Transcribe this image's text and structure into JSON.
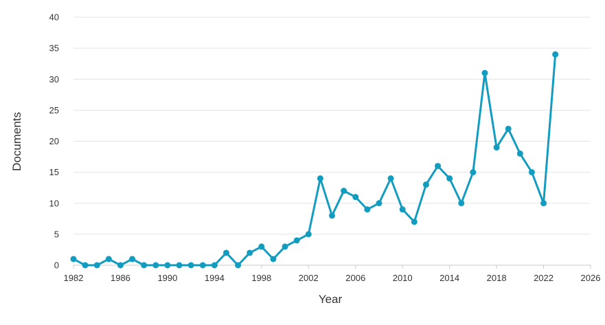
{
  "chart_data": {
    "type": "line",
    "title": "",
    "xlabel": "Year",
    "ylabel": "Documents",
    "xlim": [
      1982,
      2026
    ],
    "ylim": [
      0,
      40
    ],
    "x_ticks": [
      1982,
      1986,
      1990,
      1994,
      1998,
      2002,
      2006,
      2010,
      2014,
      2018,
      2022,
      2026
    ],
    "y_ticks": [
      0,
      5,
      10,
      15,
      20,
      25,
      30,
      35,
      40
    ],
    "grid": "horizontal",
    "legend": "none",
    "color": "#129cc0",
    "x": [
      1982,
      1983,
      1984,
      1985,
      1986,
      1987,
      1988,
      1989,
      1990,
      1991,
      1992,
      1993,
      1994,
      1995,
      1996,
      1997,
      1998,
      1999,
      2000,
      2001,
      2002,
      2003,
      2004,
      2005,
      2006,
      2007,
      2008,
      2009,
      2010,
      2011,
      2012,
      2013,
      2014,
      2015,
      2016,
      2017,
      2018,
      2019,
      2020,
      2021,
      2022,
      2023
    ],
    "series": [
      {
        "values": [
          1,
          0,
          0,
          1,
          0,
          1,
          0,
          0,
          0,
          0,
          0,
          0,
          0,
          2,
          0,
          2,
          3,
          1,
          3,
          4,
          5,
          14,
          8,
          12,
          11,
          9,
          10,
          14,
          9,
          7,
          13,
          16,
          14,
          10,
          15,
          31,
          19,
          22,
          18,
          15,
          10,
          34
        ]
      }
    ]
  }
}
